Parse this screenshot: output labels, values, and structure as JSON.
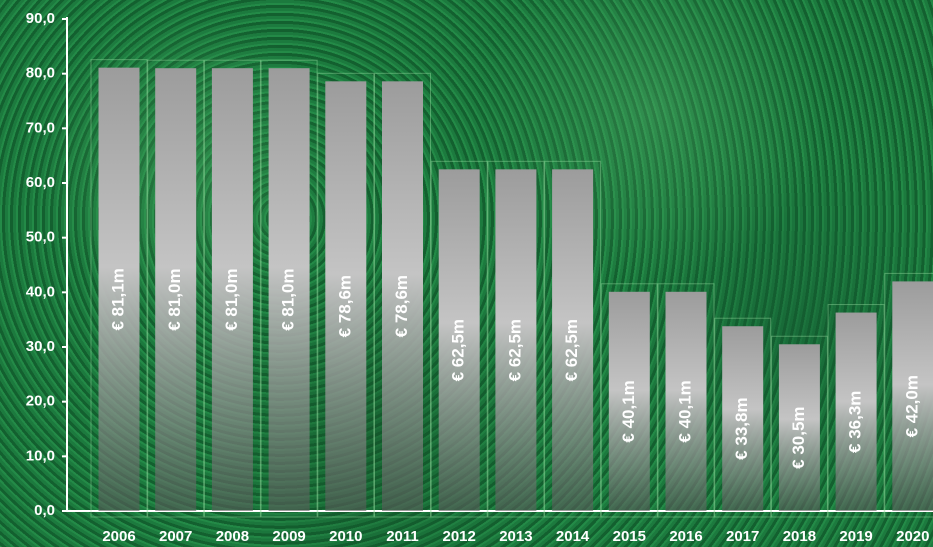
{
  "chart_data": {
    "type": "bar",
    "categories": [
      "2006",
      "2007",
      "2008",
      "2009",
      "2010",
      "2011",
      "2012",
      "2013",
      "2014",
      "2015",
      "2016",
      "2017",
      "2018",
      "2019",
      "2020"
    ],
    "values": [
      81.1,
      81.0,
      81.0,
      81.0,
      78.6,
      78.6,
      62.5,
      62.5,
      62.5,
      40.1,
      40.1,
      33.8,
      30.5,
      36.3,
      42.0
    ],
    "value_labels": [
      "€ 81,1m",
      "€ 81,0m",
      "€ 81,0m",
      "€ 81,0m",
      "€ 78,6m",
      "€ 78,6m",
      "€ 62,5m",
      "€ 62,5m",
      "€ 62,5m",
      "€ 40,1m",
      "€ 40,1m",
      "€ 33,8m",
      "€ 30,5m",
      "€ 36,3m",
      "€ 42,0m"
    ],
    "ylim": [
      0,
      90
    ],
    "yticks": [
      {
        "value": 0,
        "label": "0,0"
      },
      {
        "value": 10,
        "label": "10,0"
      },
      {
        "value": 20,
        "label": "20,0"
      },
      {
        "value": 30,
        "label": "30,0"
      },
      {
        "value": 40,
        "label": "40,0"
      },
      {
        "value": 50,
        "label": "50,0"
      },
      {
        "value": 60,
        "label": "60,0"
      },
      {
        "value": 70,
        "label": "70,0"
      },
      {
        "value": 80,
        "label": "80,0"
      },
      {
        "value": 90,
        "label": "90,0"
      }
    ]
  }
}
